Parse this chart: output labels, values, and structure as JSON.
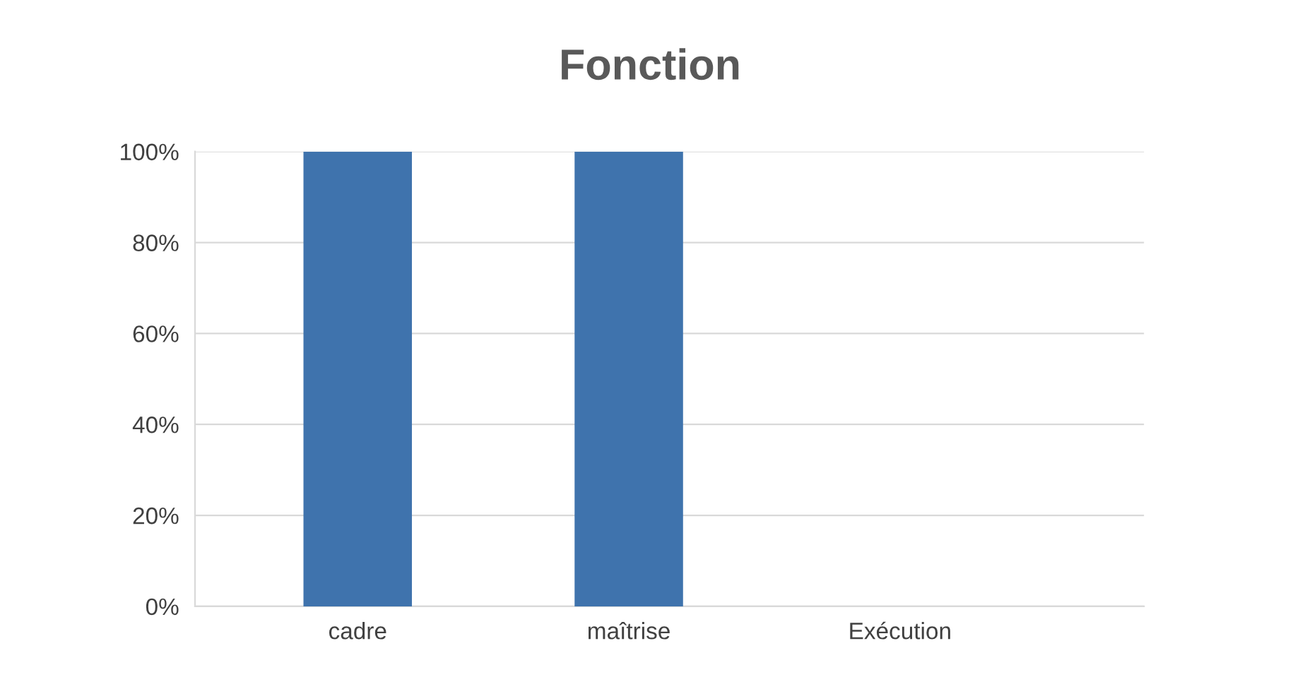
{
  "chart_data": {
    "type": "bar",
    "title": "Fonction",
    "categories": [
      "cadre",
      "maîtrise",
      "Exécution"
    ],
    "values": [
      100,
      100,
      0
    ],
    "colors": [
      "#3f73ad",
      "#3f73ad",
      "#1f2d3d"
    ],
    "ylim": [
      0,
      100
    ],
    "yticks": [
      {
        "value": 0,
        "label": "0%"
      },
      {
        "value": 20,
        "label": "20%"
      },
      {
        "value": 40,
        "label": "40%"
      },
      {
        "value": 60,
        "label": "60%"
      },
      {
        "value": 80,
        "label": "80%"
      },
      {
        "value": 100,
        "label": "100%"
      }
    ],
    "grid": "y"
  }
}
